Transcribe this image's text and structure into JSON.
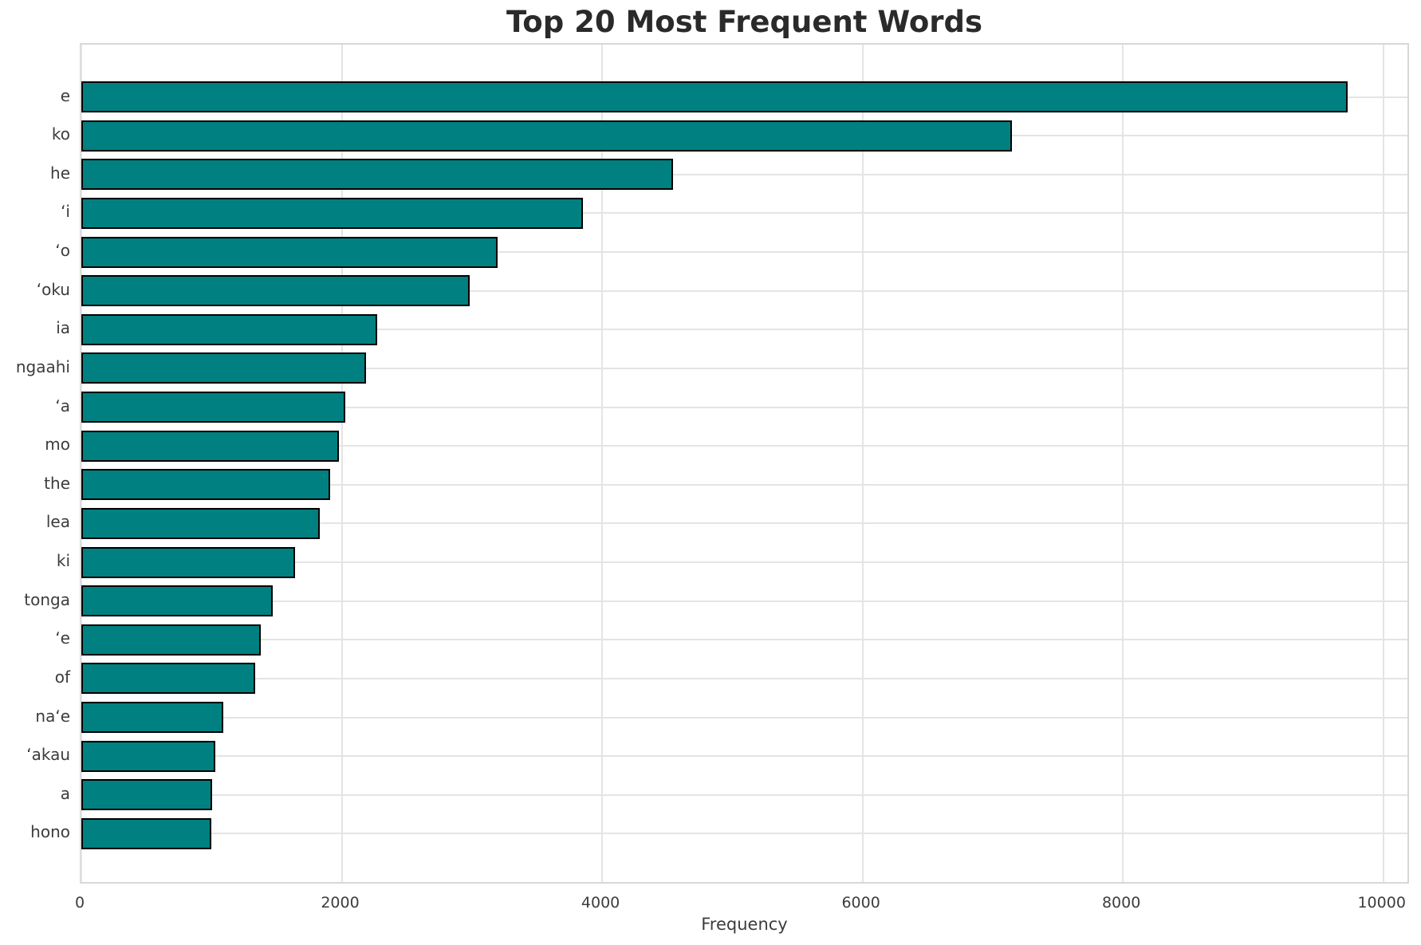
{
  "title": "Top 20 Most Frequent Words",
  "colors": {
    "bar_fill": "#008080",
    "bar_edge": "#000000",
    "grid": "#e4e4e4",
    "frame": "#d8d8d8",
    "title_text": "#2a2a2a",
    "tick_text": "#3c3c3c"
  },
  "chart_data": {
    "type": "bar",
    "orientation": "horizontal",
    "title": "Top 20 Most Frequent Words",
    "xlabel": "Frequency",
    "ylabel": "",
    "categories": [
      "e",
      "ko",
      "he",
      "ʻi",
      "ʻo",
      "ʻoku",
      "ia",
      "ngaahi",
      "ʻa",
      "mo",
      "the",
      "lea",
      "ki",
      "tonga",
      "ʻe",
      "of",
      "naʻe",
      "ʻakau",
      "a",
      "hono"
    ],
    "values": [
      9725,
      7150,
      4545,
      3850,
      3200,
      2980,
      2275,
      2185,
      2030,
      1980,
      1910,
      1830,
      1640,
      1470,
      1380,
      1335,
      1090,
      1030,
      1005,
      1000
    ],
    "xticks": [
      0,
      2000,
      4000,
      6000,
      8000,
      10000
    ],
    "xtick_labels": [
      "0",
      "2000",
      "4000",
      "6000",
      "8000",
      "10000"
    ],
    "xlim": [
      0,
      10210
    ],
    "grid": true,
    "legend": false,
    "bar_color": "#008080",
    "bar_edge_color": "#000000"
  }
}
